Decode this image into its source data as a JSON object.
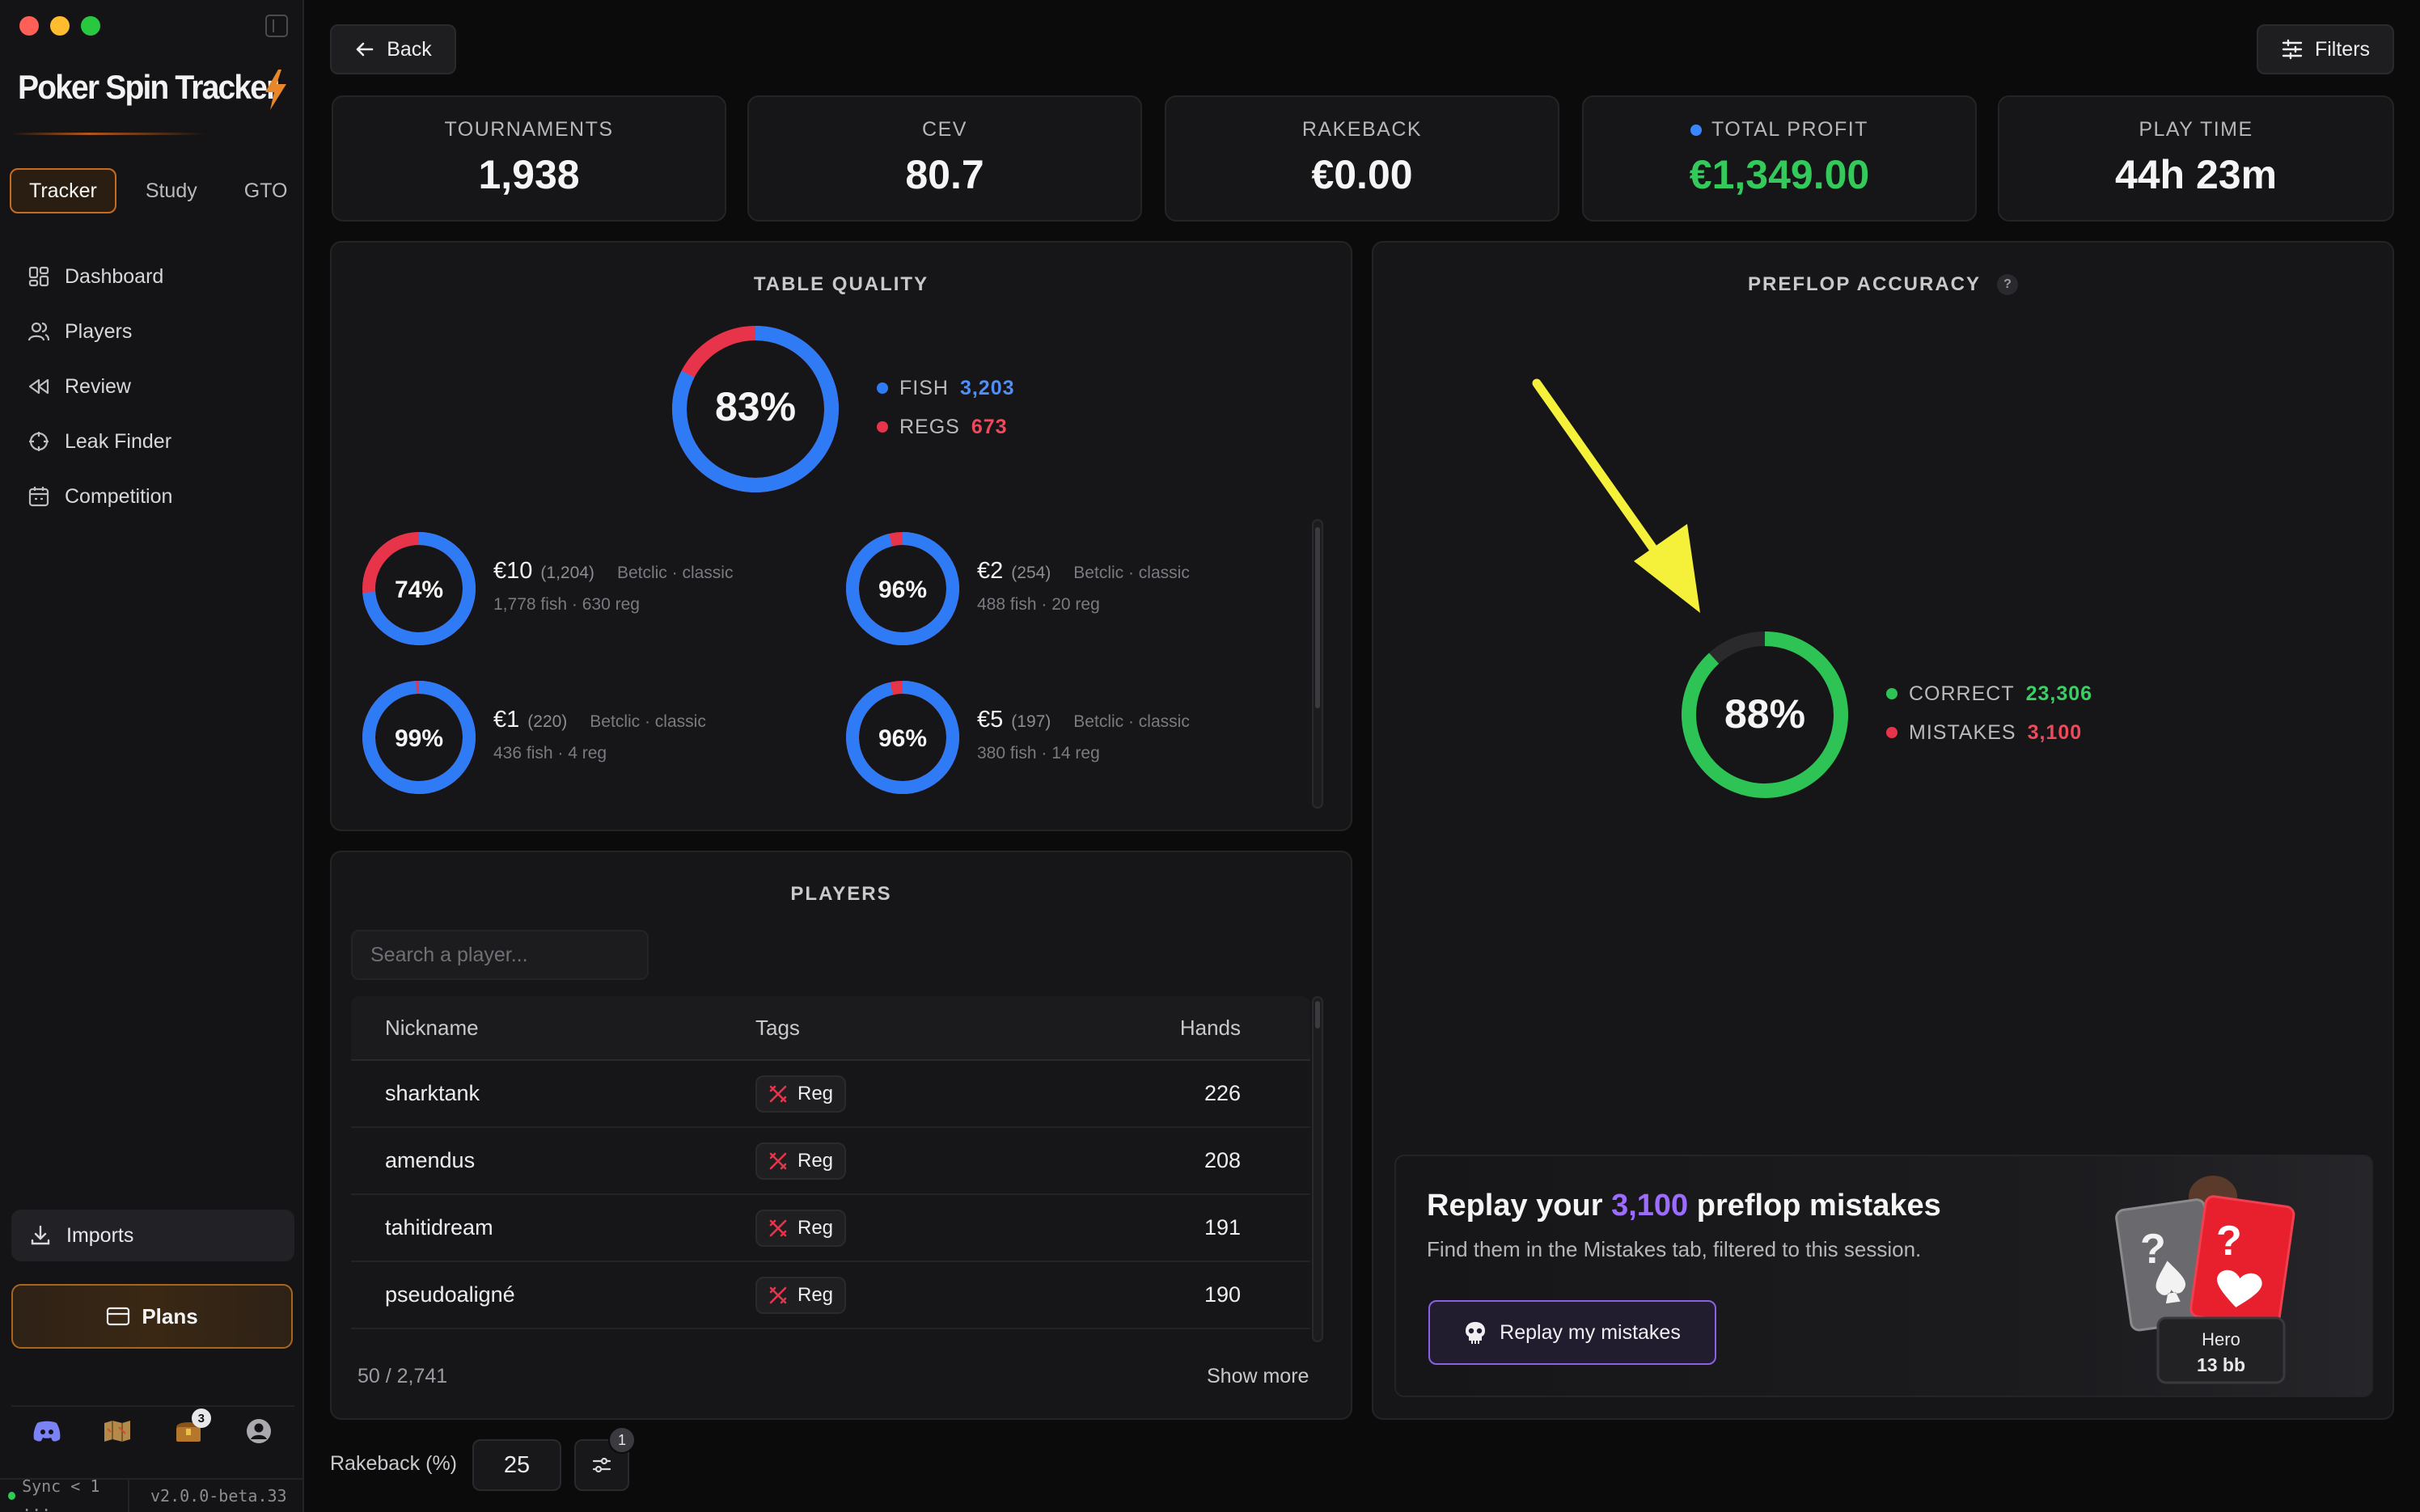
{
  "app": {
    "title": "Poker Spin Tracker",
    "traffic_colors": [
      "#ff5f57",
      "#febc2e",
      "#28c840"
    ]
  },
  "sidebar": {
    "modes": [
      {
        "label": "Tracker",
        "active": true
      },
      {
        "label": "Study",
        "active": false
      },
      {
        "label": "GTO",
        "active": false
      }
    ],
    "nav": [
      {
        "label": "Dashboard",
        "icon": "dashboard-icon"
      },
      {
        "label": "Players",
        "icon": "users-icon"
      },
      {
        "label": "Review",
        "icon": "rewind-icon"
      },
      {
        "label": "Leak Finder",
        "icon": "crosshair-icon"
      },
      {
        "label": "Competition",
        "icon": "calendar-icon"
      }
    ],
    "imports_label": "Imports",
    "plans_label": "Plans",
    "bottom_icons": [
      "discord-icon",
      "map-icon",
      "chest-icon",
      "account-icon"
    ],
    "chest_badge": "3",
    "sync_label": "Sync < 1 ...",
    "version": "v2.0.0-beta.33"
  },
  "header": {
    "back_label": "Back",
    "filters_label": "Filters"
  },
  "stats": [
    {
      "label": "TOURNAMENTS",
      "value": "1,938"
    },
    {
      "label": "CEV",
      "value": "80.7"
    },
    {
      "label": "RAKEBACK",
      "value": "€0.00"
    },
    {
      "label": "TOTAL PROFIT",
      "value": "€1,349.00"
    },
    {
      "label": "PLAY TIME",
      "value": "44h 23m"
    }
  ],
  "table_quality": {
    "title": "TABLE QUALITY",
    "overall": {
      "percent_label": "83%",
      "fish_fraction": 0.826
    },
    "fish_label": "FISH",
    "fish_count": "3,203",
    "regs_label": "REGS",
    "regs_count": "673",
    "stakes": [
      {
        "percent_label": "74%",
        "fish_fraction": 0.738,
        "stake": "€10",
        "count": "(1,204)",
        "site": "Betclic · classic",
        "detail": "1,778 fish · 630 reg"
      },
      {
        "percent_label": "96%",
        "fish_fraction": 0.961,
        "stake": "€2",
        "count": "(254)",
        "site": "Betclic · classic",
        "detail": "488 fish · 20 reg"
      },
      {
        "percent_label": "99%",
        "fish_fraction": 0.991,
        "stake": "€1",
        "count": "(220)",
        "site": "Betclic · classic",
        "detail": "436 fish · 4 reg"
      },
      {
        "percent_label": "96%",
        "fish_fraction": 0.964,
        "stake": "€5",
        "count": "(197)",
        "site": "Betclic · classic",
        "detail": "380 fish · 14 reg"
      }
    ]
  },
  "players": {
    "title": "PLAYERS",
    "search_placeholder": "Search a player...",
    "columns": {
      "nickname": "Nickname",
      "tags": "Tags",
      "hands": "Hands"
    },
    "rows": [
      {
        "nickname": "sharktank",
        "tag": "Reg",
        "hands": "226"
      },
      {
        "nickname": "amendus",
        "tag": "Reg",
        "hands": "208"
      },
      {
        "nickname": "tahitidream",
        "tag": "Reg",
        "hands": "191"
      },
      {
        "nickname": "pseudoaligné",
        "tag": "Reg",
        "hands": "190"
      }
    ],
    "count_label": "50 / 2,741",
    "show_more_label": "Show more"
  },
  "preflop_accuracy": {
    "title": "PREFLOP ACCURACY",
    "help": "?",
    "percent_label": "88%",
    "correct_fraction": 0.883,
    "correct_label": "CORRECT",
    "correct_count": "23,306",
    "mistakes_label": "MISTAKES",
    "mistakes_count": "3,100"
  },
  "replay": {
    "title_prefix": "Replay your ",
    "title_count": "3,100",
    "title_suffix": " preflop mistakes",
    "subtitle": "Find them in the Mistakes tab, filtered to this session.",
    "button_label": "Replay my mistakes",
    "card_q": "?",
    "hero_name": "Hero",
    "hero_stack": "13 bb"
  },
  "footer": {
    "rakeback_label": "Rakeback (%)",
    "rakeback_value": "25",
    "settings_badge": "1"
  },
  "colors": {
    "fish": "#2f7bf6",
    "reg": "#e8344a",
    "correct": "#2ec355",
    "mistake": "#e8344a",
    "accent_orange": "#c66b1f",
    "accent_purple": "#9b6cff",
    "profit_green": "#33c95b"
  }
}
